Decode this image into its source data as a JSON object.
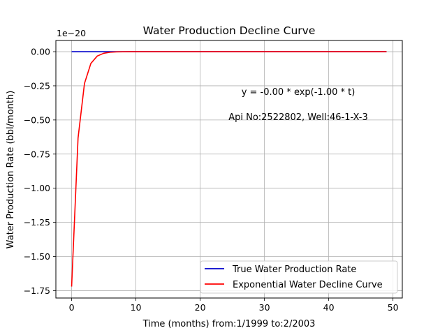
{
  "chart_data": {
    "type": "line",
    "title": "Water Production Decline Curve",
    "xlabel": "Time (months) from:1/1999 to:2/2003",
    "ylabel": "Water Production Rate (bbl/month)",
    "offset_text": "1e−20",
    "xlim": [
      -2.45,
      51.45
    ],
    "ylim": [
      -1.804,
      0.082
    ],
    "x_ticks": [
      0,
      10,
      20,
      30,
      40,
      50
    ],
    "x_tick_labels": [
      "0",
      "10",
      "20",
      "30",
      "40",
      "50"
    ],
    "y_ticks": [
      0.0,
      -0.25,
      -0.5,
      -0.75,
      -1.0,
      -1.25,
      -1.5,
      -1.75
    ],
    "y_tick_labels": [
      "0.00",
      "−0.25",
      "−0.50",
      "−0.75",
      "−1.00",
      "−1.25",
      "−1.50",
      "−1.75"
    ],
    "grid": true,
    "legend_position": "bottom-right",
    "annotations": [
      "y = -0.00 * exp(-1.00 * t)",
      "Api No:2522802, Well:46-1-X-3"
    ],
    "series": [
      {
        "name": "True Water Production Rate",
        "color": "#0000cc",
        "x": [
          0,
          1,
          2,
          3,
          4,
          5,
          6,
          7,
          8,
          9,
          10,
          11,
          12,
          13,
          14,
          15,
          16,
          17,
          18,
          19,
          20,
          21,
          22,
          23,
          24,
          25,
          26,
          27,
          28,
          29,
          30,
          31,
          32,
          33,
          34,
          35,
          36,
          37,
          38,
          39,
          40,
          41,
          42,
          43,
          44,
          45,
          46,
          47,
          48,
          49
        ],
        "y": [
          0,
          0,
          0,
          0,
          0,
          0,
          0,
          0,
          0,
          0,
          0,
          0,
          0,
          0,
          0,
          0,
          0,
          0,
          0,
          0,
          0,
          0,
          0,
          0,
          0,
          0,
          0,
          0,
          0,
          0,
          0,
          0,
          0,
          0,
          0,
          0,
          0,
          0,
          0,
          0,
          0,
          0,
          0,
          0,
          0,
          0,
          0,
          0,
          0,
          0
        ]
      },
      {
        "name": "Exponential Water Decline Curve",
        "color": "#ff0000",
        "x": [
          0,
          1,
          2,
          3,
          4,
          5,
          6,
          7,
          8,
          9,
          10,
          11,
          12,
          13,
          14,
          15,
          16,
          17,
          18,
          19,
          20,
          21,
          22,
          23,
          24,
          25,
          26,
          27,
          28,
          29,
          30,
          31,
          32,
          33,
          34,
          35,
          36,
          37,
          38,
          39,
          40,
          41,
          42,
          43,
          44,
          45,
          46,
          47,
          48,
          49
        ],
        "y": [
          -1.72,
          -0.633,
          -0.233,
          -0.0856,
          -0.0315,
          -0.0116,
          -0.0043,
          -0.0016,
          -0.0006,
          -0.0002,
          0,
          0,
          0,
          0,
          0,
          0,
          0,
          0,
          0,
          0,
          0,
          0,
          0,
          0,
          0,
          0,
          0,
          0,
          0,
          0,
          0,
          0,
          0,
          0,
          0,
          0,
          0,
          0,
          0,
          0,
          0,
          0,
          0,
          0,
          0,
          0,
          0,
          0,
          0,
          0
        ]
      }
    ]
  }
}
